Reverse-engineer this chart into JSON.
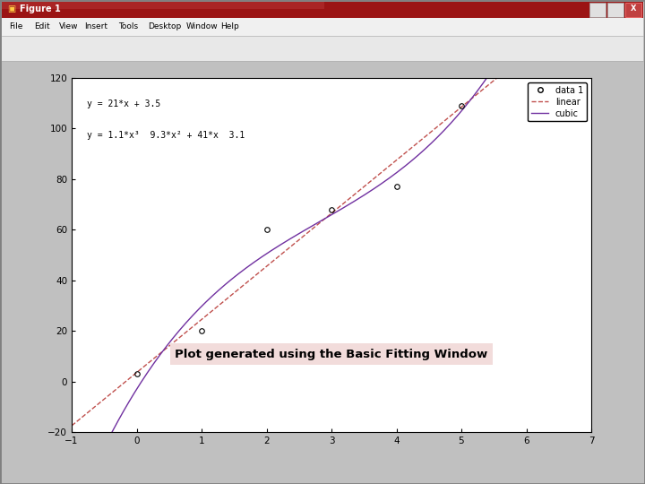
{
  "data_x": [
    0,
    1,
    2,
    3,
    4,
    5
  ],
  "data_y": [
    3,
    20,
    60,
    68,
    77,
    109
  ],
  "xlim": [
    -1,
    7
  ],
  "ylim": [
    -20,
    120
  ],
  "xticks": [
    -1,
    0,
    1,
    2,
    3,
    4,
    5,
    6,
    7
  ],
  "yticks": [
    -20,
    0,
    20,
    40,
    60,
    80,
    100,
    120
  ],
  "linear_label": "linear",
  "cubic_label": "cubic",
  "data_label": "data 1",
  "linear_color": "#c0504d",
  "cubic_color": "#7030a0",
  "annotation_text": "Plot generated using the Basic Fitting Window",
  "annotation_bg": "#f2dcdb",
  "eq_linear": "y = 21*x + 3.5",
  "eq_cubic": "y = 1.1*x³  9.3*x² + 41*x  3.1",
  "window_bg": "#c0c0c0",
  "titlebar_bg": "#8b0000",
  "menubar_bg": "#f0f0f0",
  "plot_bg": "#ffffff",
  "figsize": [
    7.2,
    5.4
  ],
  "dpi": 100,
  "window_title": "Figure 1",
  "cubic_coeffs": [
    1.1,
    -9.3,
    41.0,
    -3.1
  ],
  "linear_coeffs": [
    21.0,
    3.5
  ]
}
